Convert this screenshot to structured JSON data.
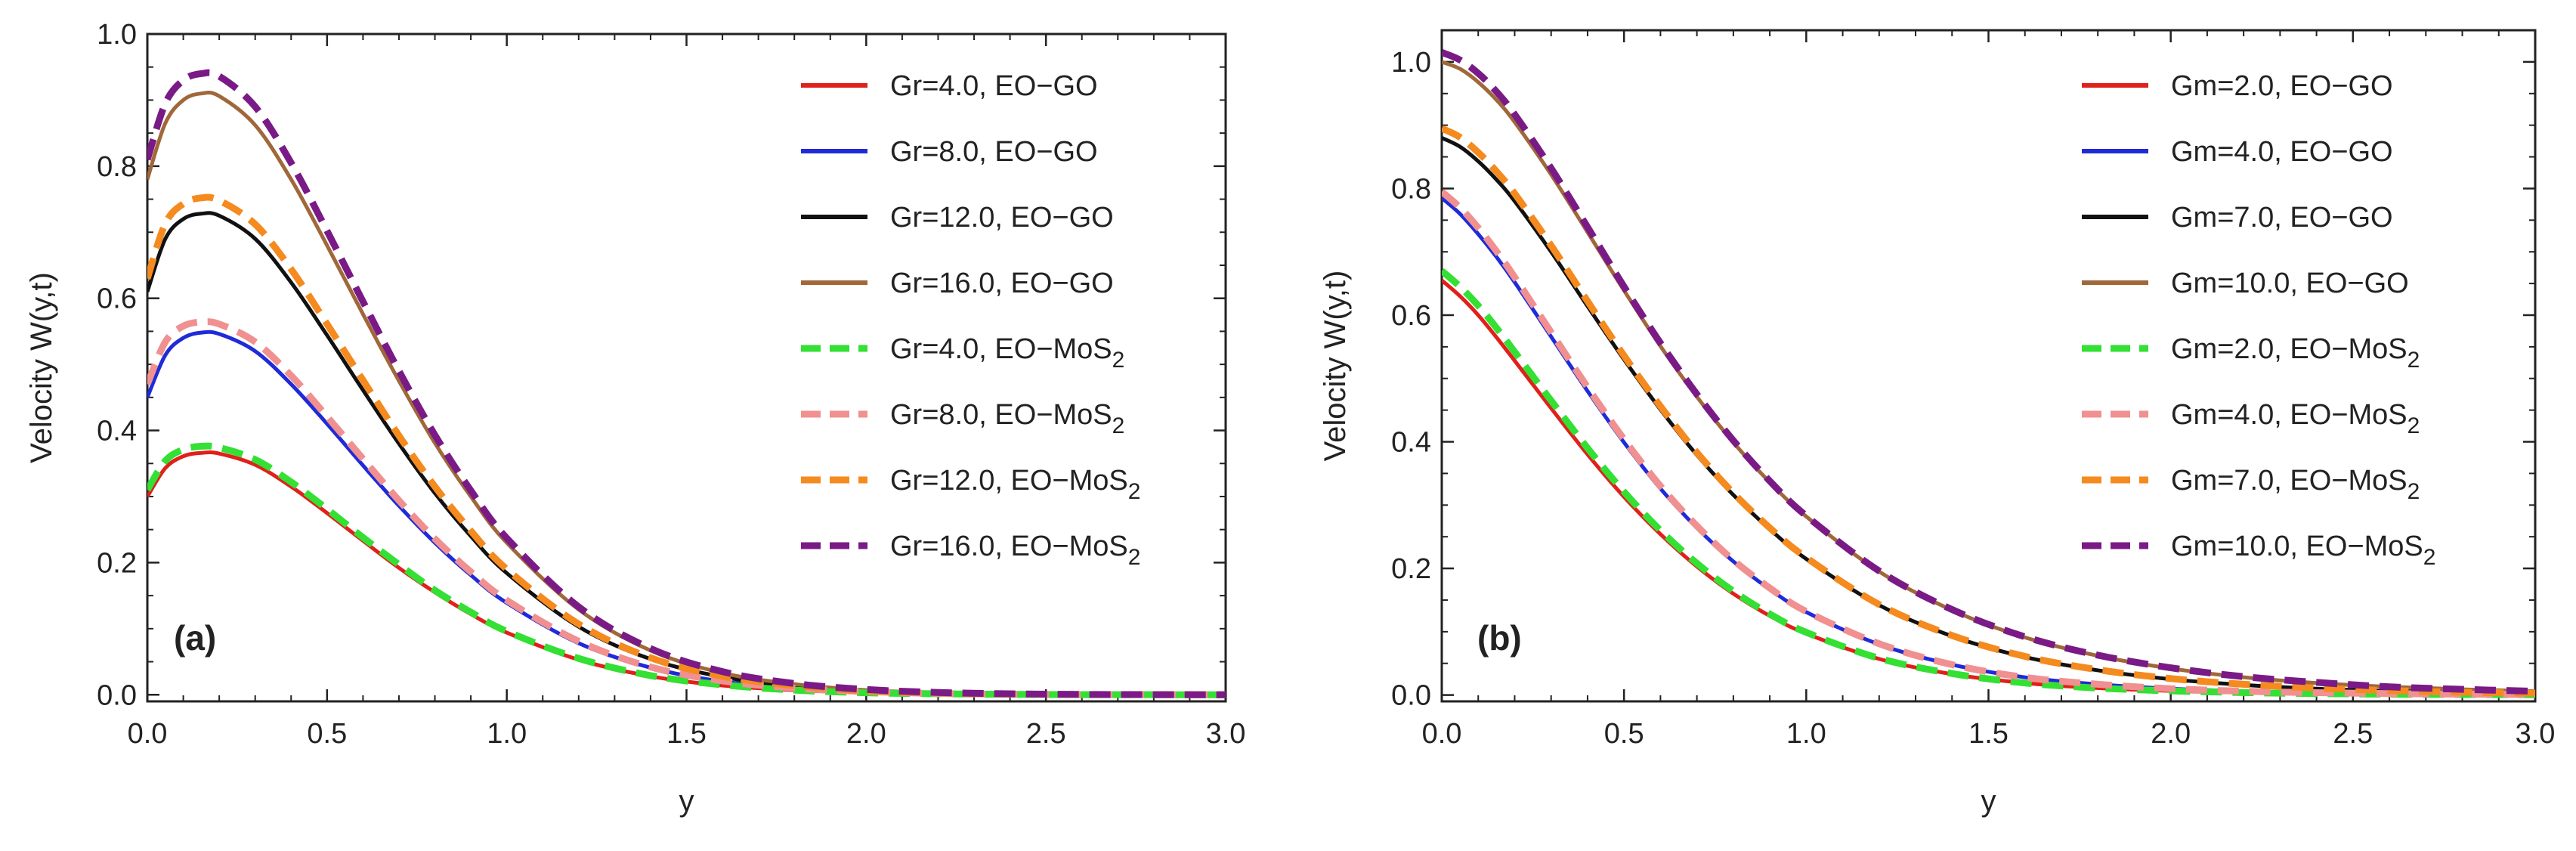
{
  "chart_data": [
    {
      "panel_label": "(a)",
      "type": "line",
      "xlabel": "y",
      "ylabel": "Velocity W(y,t)",
      "xlim": [
        0,
        3.0
      ],
      "ylim": [
        -0.01,
        1.0
      ],
      "xticks": [
        "0.0",
        "0.5",
        "1.0",
        "1.5",
        "2.0",
        "2.5",
        "3.0"
      ],
      "yticks": [
        "0.0",
        "0.2",
        "0.4",
        "0.6",
        "0.8",
        "1.0"
      ],
      "x": [
        0,
        0.05,
        0.1,
        0.15,
        0.2,
        0.3,
        0.4,
        0.5,
        0.6,
        0.7,
        0.8,
        0.9,
        1.0,
        1.2,
        1.4,
        1.6,
        1.8,
        2.0,
        2.2,
        2.4,
        2.6,
        2.8,
        3.0
      ],
      "legend_position": "top-right",
      "series": [
        {
          "name": "Gr=4.0, EO−GO",
          "color": "#e0201a",
          "style": "solid",
          "values": [
            0.3,
            0.343,
            0.361,
            0.366,
            0.365,
            0.348,
            0.315,
            0.275,
            0.233,
            0.192,
            0.155,
            0.122,
            0.094,
            0.053,
            0.028,
            0.014,
            0.007,
            0.003,
            0.001,
            0.0005,
            0.0002,
            0.0001,
            0.0
          ]
        },
        {
          "name": "Gr=8.0, EO−GO",
          "color": "#1f2bd8",
          "style": "solid",
          "values": [
            0.45,
            0.514,
            0.54,
            0.548,
            0.546,
            0.52,
            0.47,
            0.41,
            0.347,
            0.286,
            0.23,
            0.181,
            0.139,
            0.078,
            0.041,
            0.02,
            0.01,
            0.004,
            0.002,
            0.0008,
            0.0003,
            0.0001,
            0.0
          ]
        },
        {
          "name": "Gr=12.0, EO−GO",
          "color": "#111111",
          "style": "solid",
          "values": [
            0.61,
            0.69,
            0.72,
            0.728,
            0.725,
            0.69,
            0.624,
            0.544,
            0.461,
            0.38,
            0.305,
            0.24,
            0.184,
            0.103,
            0.054,
            0.027,
            0.013,
            0.006,
            0.003,
            0.001,
            0.0004,
            0.0002,
            0.0
          ]
        },
        {
          "name": "Gr=16.0, EO−GO",
          "color": "#a0683a",
          "style": "solid",
          "values": [
            0.78,
            0.865,
            0.9,
            0.91,
            0.906,
            0.862,
            0.78,
            0.68,
            0.576,
            0.475,
            0.381,
            0.3,
            0.23,
            0.129,
            0.067,
            0.033,
            0.016,
            0.007,
            0.003,
            0.0013,
            0.0005,
            0.0002,
            0.0
          ]
        },
        {
          "name": "Gr=4.0, EO−MoS",
          "sub": "2",
          "color": "#33e033",
          "style": "dashed",
          "values": [
            0.31,
            0.354,
            0.371,
            0.376,
            0.374,
            0.356,
            0.322,
            0.281,
            0.238,
            0.197,
            0.158,
            0.125,
            0.096,
            0.055,
            0.029,
            0.015,
            0.007,
            0.003,
            0.0015,
            0.0006,
            0.0002,
            0.0001,
            0.0
          ]
        },
        {
          "name": "Gr=8.0, EO−MoS",
          "sub": "2",
          "color": "#f09090",
          "style": "dashed",
          "values": [
            0.47,
            0.534,
            0.558,
            0.564,
            0.561,
            0.534,
            0.483,
            0.421,
            0.357,
            0.294,
            0.236,
            0.186,
            0.143,
            0.081,
            0.042,
            0.021,
            0.01,
            0.005,
            0.002,
            0.0009,
            0.0003,
            0.0001,
            0.0
          ]
        },
        {
          "name": "Gr=12.0, EO−MoS",
          "sub": "2",
          "color": "#f58a1f",
          "style": "dashed",
          "values": [
            0.63,
            0.713,
            0.743,
            0.752,
            0.748,
            0.712,
            0.644,
            0.561,
            0.476,
            0.392,
            0.315,
            0.248,
            0.19,
            0.107,
            0.056,
            0.028,
            0.014,
            0.006,
            0.003,
            0.0012,
            0.0004,
            0.0002,
            0.0
          ]
        },
        {
          "name": "Gr=16.0, EO−MoS",
          "sub": "2",
          "color": "#7a1a86",
          "style": "dashed",
          "values": [
            0.81,
            0.895,
            0.93,
            0.94,
            0.936,
            0.89,
            0.805,
            0.702,
            0.595,
            0.49,
            0.393,
            0.309,
            0.237,
            0.133,
            0.07,
            0.035,
            0.017,
            0.008,
            0.0035,
            0.0014,
            0.0005,
            0.0002,
            0.0
          ]
        }
      ]
    },
    {
      "panel_label": "(b)",
      "type": "line",
      "xlabel": "y",
      "ylabel": "Velocity W(y,t)",
      "xlim": [
        0,
        3.0
      ],
      "ylim": [
        -0.01,
        1.05
      ],
      "xticks": [
        "0.0",
        "0.5",
        "1.0",
        "1.5",
        "2.0",
        "2.5",
        "3.0"
      ],
      "yticks": [
        "0.0",
        "0.2",
        "0.4",
        "0.6",
        "0.8",
        "1.0"
      ],
      "x": [
        0,
        0.05,
        0.1,
        0.15,
        0.2,
        0.3,
        0.4,
        0.5,
        0.6,
        0.7,
        0.8,
        0.9,
        1.0,
        1.2,
        1.4,
        1.6,
        1.8,
        2.0,
        2.2,
        2.4,
        2.6,
        2.8,
        3.0
      ],
      "legend_position": "top-right",
      "series": [
        {
          "name": "Gm=2.0, EO−GO",
          "color": "#e0201a",
          "style": "solid",
          "values": [
            0.655,
            0.63,
            0.6,
            0.565,
            0.528,
            0.453,
            0.38,
            0.313,
            0.254,
            0.203,
            0.16,
            0.125,
            0.097,
            0.057,
            0.033,
            0.019,
            0.011,
            0.0065,
            0.0038,
            0.0022,
            0.0013,
            0.0008,
            0.0005
          ]
        },
        {
          "name": "Gm=4.0, EO−GO",
          "color": "#1f2bd8",
          "style": "solid",
          "values": [
            0.785,
            0.76,
            0.728,
            0.692,
            0.652,
            0.566,
            0.48,
            0.399,
            0.326,
            0.264,
            0.211,
            0.167,
            0.131,
            0.08,
            0.048,
            0.028,
            0.017,
            0.01,
            0.006,
            0.0037,
            0.0023,
            0.0014,
            0.0009
          ]
        },
        {
          "name": "Gm=7.0, EO−GO",
          "color": "#111111",
          "style": "solid",
          "values": [
            0.88,
            0.866,
            0.843,
            0.814,
            0.78,
            0.7,
            0.614,
            0.53,
            0.451,
            0.379,
            0.316,
            0.262,
            0.215,
            0.142,
            0.093,
            0.06,
            0.039,
            0.025,
            0.016,
            0.01,
            0.0065,
            0.0042,
            0.0027
          ]
        },
        {
          "name": "Gm=10.0, EO−GO",
          "color": "#a0683a",
          "style": "solid",
          "values": [
            1.0,
            0.989,
            0.968,
            0.94,
            0.905,
            0.822,
            0.731,
            0.639,
            0.551,
            0.471,
            0.399,
            0.336,
            0.282,
            0.195,
            0.134,
            0.091,
            0.062,
            0.042,
            0.028,
            0.019,
            0.013,
            0.009,
            0.006
          ]
        },
        {
          "name": "Gm=2.0, EO−MoS",
          "sub": "2",
          "color": "#33e033",
          "style": "dashed",
          "values": [
            0.67,
            0.645,
            0.615,
            0.58,
            0.542,
            0.465,
            0.39,
            0.321,
            0.26,
            0.208,
            0.164,
            0.128,
            0.099,
            0.058,
            0.034,
            0.019,
            0.011,
            0.0066,
            0.0039,
            0.0023,
            0.0013,
            0.0008,
            0.0005
          ]
        },
        {
          "name": "Gm=4.0, EO−MoS",
          "sub": "2",
          "color": "#f09090",
          "style": "dashed",
          "values": [
            0.795,
            0.77,
            0.738,
            0.701,
            0.66,
            0.573,
            0.486,
            0.404,
            0.33,
            0.267,
            0.213,
            0.169,
            0.132,
            0.081,
            0.048,
            0.028,
            0.017,
            0.01,
            0.006,
            0.0037,
            0.0023,
            0.0014,
            0.0009
          ]
        },
        {
          "name": "Gm=7.0, EO−MoS",
          "sub": "2",
          "color": "#f58a1f",
          "style": "dashed",
          "values": [
            0.895,
            0.881,
            0.857,
            0.827,
            0.792,
            0.71,
            0.622,
            0.536,
            0.456,
            0.383,
            0.319,
            0.264,
            0.217,
            0.143,
            0.094,
            0.061,
            0.04,
            0.026,
            0.017,
            0.011,
            0.007,
            0.0045,
            0.0029
          ]
        },
        {
          "name": "Gm=10.0, EO−MoS",
          "sub": "2",
          "color": "#7a1a86",
          "style": "dashed",
          "values": [
            1.015,
            1.003,
            0.982,
            0.953,
            0.917,
            0.832,
            0.739,
            0.645,
            0.556,
            0.475,
            0.402,
            0.338,
            0.283,
            0.196,
            0.135,
            0.092,
            0.063,
            0.043,
            0.029,
            0.02,
            0.013,
            0.009,
            0.006
          ]
        }
      ]
    }
  ]
}
